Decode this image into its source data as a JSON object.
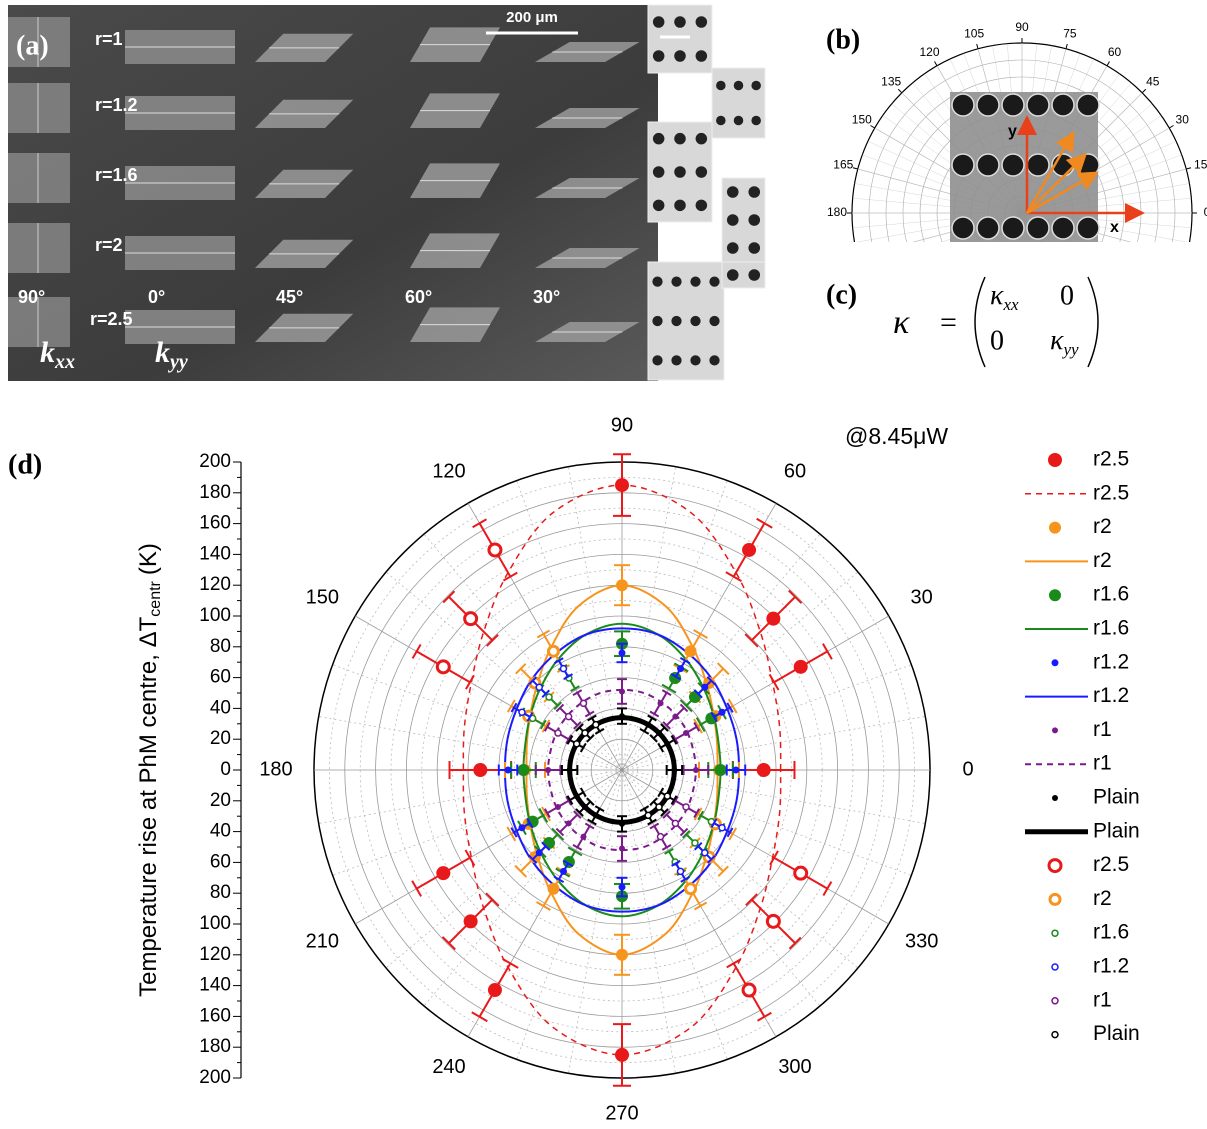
{
  "panel_a": {
    "label": "(a)",
    "scale_bar": "200 μm",
    "rows": [
      "r=1",
      "r=1.2",
      "r=1.6",
      "r=2",
      "r=2.5"
    ],
    "angles": [
      "90°",
      "0°",
      "45°",
      "60°",
      "30°"
    ],
    "k": "k",
    "xx": "xx",
    "yy": "yy"
  },
  "panel_b": {
    "label": "(b)",
    "angle_ticks": [
      0,
      15,
      30,
      45,
      60,
      75,
      90,
      105,
      120,
      135,
      150,
      165,
      180
    ],
    "x_axis": "x",
    "y_axis": "y"
  },
  "panel_c": {
    "label": "(c)",
    "symbol": "κ",
    "equals": "=",
    "xx": "xx",
    "yy": "yy",
    "zero": "0"
  },
  "chart_data": {
    "type": "polar",
    "panel_label": "(d)",
    "annotation": "@8.45μW",
    "r_label": "Temperature rise at PhM centre, ΔT",
    "r_label_sub": "centr",
    "r_label_unit": "(K)",
    "rlim": [
      0,
      200
    ],
    "rticks": [
      0,
      20,
      40,
      60,
      80,
      100,
      120,
      140,
      160,
      180,
      200
    ],
    "thetaticks": [
      0,
      30,
      60,
      90,
      120,
      150,
      180,
      210,
      240,
      270,
      300,
      330
    ],
    "grid": true,
    "series": [
      {
        "name": "r2.5",
        "color": "#e8191b",
        "marker": "filled",
        "size": 7,
        "theta": [
          0,
          30,
          45,
          60,
          90,
          180,
          210,
          225,
          240,
          270
        ],
        "values": [
          92,
          134,
          139,
          165,
          185,
          92,
          134,
          139,
          165,
          185
        ],
        "errors": [
          20,
          20,
          20,
          20,
          20,
          20,
          20,
          20,
          20,
          20
        ]
      },
      {
        "name": "r2.5",
        "color": "#e8191b",
        "line": "dashed",
        "width": 1.5,
        "theta": [
          0,
          15,
          30,
          45,
          60,
          75,
          90,
          105,
          120,
          135,
          150,
          165,
          180,
          195,
          210,
          225,
          240,
          255,
          270,
          285,
          300,
          315,
          330,
          345
        ],
        "values": [
          103,
          106,
          113,
          127,
          148,
          173,
          185,
          173,
          148,
          127,
          113,
          106,
          103,
          106,
          113,
          127,
          148,
          173,
          185,
          173,
          148,
          127,
          113,
          106
        ]
      },
      {
        "name": "r2",
        "color": "#f7941d",
        "marker": "filled",
        "size": 6,
        "theta": [
          0,
          30,
          45,
          60,
          90,
          180,
          210,
          225,
          240,
          270
        ],
        "values": [
          63,
          70,
          80,
          89,
          120,
          63,
          70,
          80,
          89,
          120
        ],
        "errors": [
          13,
          13,
          13,
          13,
          13,
          13,
          13,
          13,
          13,
          13
        ]
      },
      {
        "name": "r2",
        "color": "#f7941d",
        "line": "solid",
        "width": 2,
        "theta": [
          0,
          15,
          30,
          45,
          60,
          75,
          90,
          105,
          120,
          135,
          150,
          165,
          180,
          195,
          210,
          225,
          240,
          255,
          270,
          285,
          300,
          315,
          330,
          345
        ],
        "values": [
          62,
          64,
          69,
          78,
          92,
          110,
          120,
          110,
          92,
          78,
          69,
          64,
          62,
          64,
          69,
          78,
          92,
          110,
          120,
          110,
          92,
          78,
          69,
          64
        ]
      },
      {
        "name": "r1.6",
        "color": "#1a8a1a",
        "marker": "filled",
        "size": 6,
        "theta": [
          0,
          30,
          45,
          60,
          90,
          180,
          210,
          225,
          240,
          270
        ],
        "values": [
          64,
          67,
          67,
          69,
          82,
          64,
          67,
          67,
          69,
          82
        ],
        "errors": [
          8,
          8,
          8,
          8,
          8,
          8,
          8,
          8,
          8,
          8
        ]
      },
      {
        "name": "r1.6",
        "color": "#1a8a1a",
        "line": "solid",
        "width": 2,
        "theta": [
          0,
          15,
          30,
          45,
          60,
          75,
          90,
          105,
          120,
          135,
          150,
          165,
          180,
          195,
          210,
          225,
          240,
          255,
          270,
          285,
          300,
          315,
          330,
          345
        ],
        "values": [
          64,
          65,
          69,
          75,
          83,
          91,
          95,
          91,
          83,
          75,
          69,
          65,
          64,
          65,
          69,
          75,
          83,
          91,
          95,
          91,
          83,
          75,
          69,
          65
        ]
      },
      {
        "name": "r1.2",
        "color": "#1a1aff",
        "marker": "filled",
        "size": 3.5,
        "theta": [
          0,
          30,
          45,
          60,
          90,
          180,
          210,
          225,
          240,
          270
        ],
        "values": [
          74,
          75,
          76,
          76,
          76,
          74,
          75,
          76,
          76,
          76
        ],
        "errors": [
          6,
          6,
          6,
          6,
          6,
          6,
          6,
          6,
          6,
          6
        ]
      },
      {
        "name": "r1.2",
        "color": "#1a1aff",
        "line": "solid",
        "width": 2,
        "theta": [
          0,
          15,
          30,
          45,
          60,
          75,
          90,
          105,
          120,
          135,
          150,
          165,
          180,
          195,
          210,
          225,
          240,
          255,
          270,
          285,
          300,
          315,
          330,
          345
        ],
        "values": [
          76,
          77,
          79,
          83,
          87,
          91,
          92,
          91,
          87,
          83,
          79,
          77,
          76,
          77,
          79,
          83,
          87,
          91,
          92,
          91,
          87,
          83,
          79,
          77
        ]
      },
      {
        "name": "r1",
        "color": "#7b1a8a",
        "marker": "filled",
        "size": 3,
        "theta": [
          0,
          30,
          45,
          60,
          90,
          180,
          210,
          225,
          240,
          270
        ],
        "values": [
          48,
          48,
          49,
          50,
          51,
          48,
          48,
          49,
          50,
          51
        ],
        "errors": [
          8,
          8,
          8,
          8,
          8,
          8,
          8,
          8,
          8,
          8
        ]
      },
      {
        "name": "r1",
        "color": "#7b1a8a",
        "line": "dashed",
        "width": 2,
        "theta": [
          0,
          15,
          30,
          45,
          60,
          75,
          90,
          105,
          120,
          135,
          150,
          165,
          180,
          195,
          210,
          225,
          240,
          255,
          270,
          285,
          300,
          315,
          330,
          345
        ],
        "values": [
          48,
          48,
          49,
          50,
          51,
          52,
          52,
          52,
          51,
          50,
          49,
          48,
          48,
          48,
          49,
          50,
          51,
          52,
          52,
          52,
          51,
          50,
          49,
          48
        ]
      },
      {
        "name": "Plain",
        "color": "#000000",
        "marker": "filled",
        "size": 3,
        "theta": [
          0,
          30,
          45,
          60,
          90,
          180,
          210,
          225,
          240,
          270
        ],
        "values": [
          34,
          34,
          34,
          34,
          35,
          34,
          34,
          34,
          34,
          35
        ],
        "errors": [
          5,
          5,
          5,
          5,
          5,
          5,
          5,
          5,
          5,
          5
        ]
      },
      {
        "name": "Plain",
        "color": "#000000",
        "line": "solid",
        "width": 5,
        "theta": [
          0,
          15,
          30,
          45,
          60,
          75,
          90,
          105,
          120,
          135,
          150,
          165,
          180,
          195,
          210,
          225,
          240,
          255,
          270,
          285,
          300,
          315,
          330,
          345
        ],
        "values": [
          34,
          34,
          34,
          34,
          34,
          34,
          34,
          34,
          34,
          34,
          34,
          34,
          34,
          34,
          34,
          34,
          34,
          34,
          34,
          34,
          34,
          34,
          34,
          34
        ]
      },
      {
        "name": "r2.5",
        "color": "#e8191b",
        "marker": "open",
        "size": 6,
        "theta": [
          120,
          135,
          150,
          300,
          315,
          330
        ],
        "values": [
          165,
          139,
          134,
          165,
          139,
          134
        ],
        "errors": [
          20,
          20,
          20,
          20,
          20,
          20
        ]
      },
      {
        "name": "r2",
        "color": "#f7941d",
        "marker": "open",
        "size": 5,
        "theta": [
          120,
          135,
          150,
          300,
          315,
          330
        ],
        "values": [
          89,
          80,
          70,
          89,
          80,
          70
        ],
        "errors": [
          13,
          13,
          13,
          13,
          13,
          13
        ]
      },
      {
        "name": "r1.6",
        "color": "#1a8a1a",
        "marker": "open",
        "size": 3,
        "theta": [
          120,
          135,
          150,
          300,
          315,
          330
        ],
        "values": [
          69,
          67,
          67,
          69,
          67,
          67
        ],
        "errors": [
          8,
          8,
          8,
          8,
          8,
          8
        ]
      },
      {
        "name": "r1.2",
        "color": "#1a1aff",
        "marker": "open",
        "size": 3,
        "theta": [
          120,
          135,
          150,
          300,
          315,
          330
        ],
        "values": [
          76,
          76,
          75,
          76,
          76,
          75
        ],
        "errors": [
          6,
          6,
          6,
          6,
          6,
          6
        ]
      },
      {
        "name": "r1",
        "color": "#7b1a8a",
        "marker": "open",
        "size": 3,
        "theta": [
          120,
          135,
          150,
          300,
          315,
          330
        ],
        "values": [
          50,
          49,
          48,
          50,
          49,
          48
        ],
        "errors": [
          8,
          8,
          8,
          8,
          8,
          8
        ]
      },
      {
        "name": "Plain",
        "color": "#000000",
        "marker": "open",
        "size": 3,
        "theta": [
          120,
          135,
          150,
          300,
          315,
          330
        ],
        "values": [
          34,
          34,
          34,
          34,
          34,
          34
        ],
        "errors": [
          5,
          5,
          5,
          5,
          5,
          5
        ]
      }
    ]
  }
}
